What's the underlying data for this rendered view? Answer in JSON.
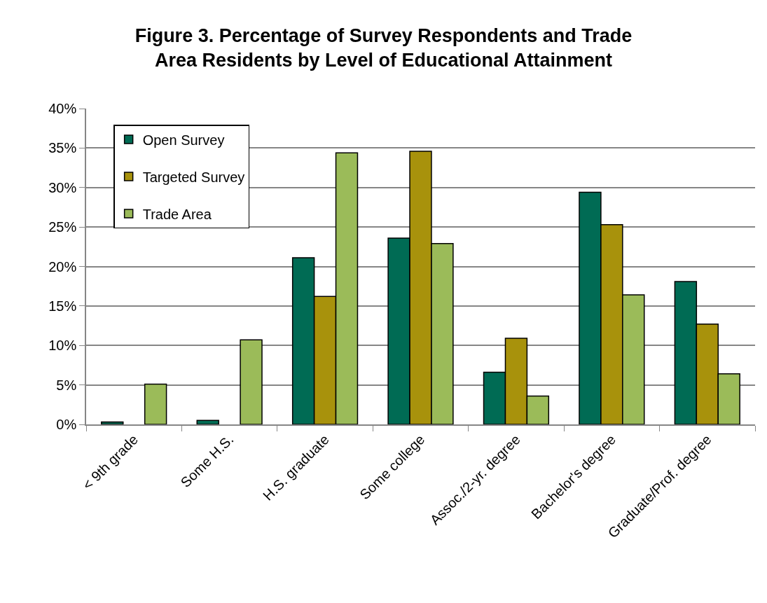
{
  "chart_data": {
    "type": "bar",
    "title": "Figure 3. Percentage of Survey Respondents and Trade Area Residents by Level of Educational Attainment",
    "categories": [
      "< 9th grade",
      "Some H.S.",
      "H.S. graduate",
      "Some college",
      "Assoc./2-yr. degree",
      "Bachelor's degree",
      "Graduate/Prof. degree"
    ],
    "series": [
      {
        "name": "Open Survey",
        "color": "#006b54",
        "values": [
          0.3,
          0.5,
          21.1,
          23.6,
          6.6,
          29.4,
          18.1
        ]
      },
      {
        "name": "Targeted Survey",
        "color": "#a8920c",
        "values": [
          null,
          null,
          16.2,
          34.6,
          10.9,
          25.3,
          12.7
        ]
      },
      {
        "name": "Trade Area",
        "color": "#9bbb59",
        "values": [
          5.1,
          10.7,
          34.4,
          22.9,
          3.6,
          16.4,
          6.4
        ]
      }
    ],
    "ylim": [
      0,
      40
    ],
    "yticks": [
      {
        "value": 0,
        "label": "0%"
      },
      {
        "value": 5,
        "label": "5%"
      },
      {
        "value": 10,
        "label": "10%"
      },
      {
        "value": 15,
        "label": "15%"
      },
      {
        "value": 20,
        "label": "20%"
      },
      {
        "value": 25,
        "label": "25%"
      },
      {
        "value": 30,
        "label": "30%"
      },
      {
        "value": 35,
        "label": "35%"
      },
      {
        "value": 40,
        "label": "40%"
      }
    ],
    "grid": "y",
    "legend": "top left"
  }
}
